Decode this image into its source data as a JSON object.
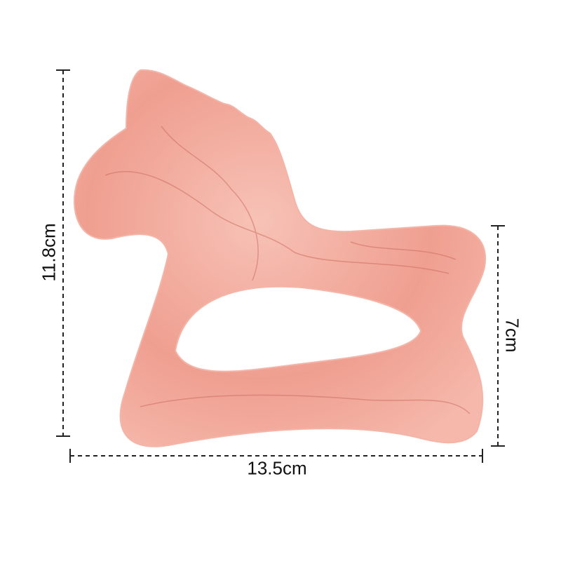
{
  "product": {
    "description_shape": "horse",
    "color": "#f0a497"
  },
  "dimensions": {
    "height_label": "11.8cm",
    "right_height_label": "7cm",
    "width_label": "13.5cm"
  }
}
